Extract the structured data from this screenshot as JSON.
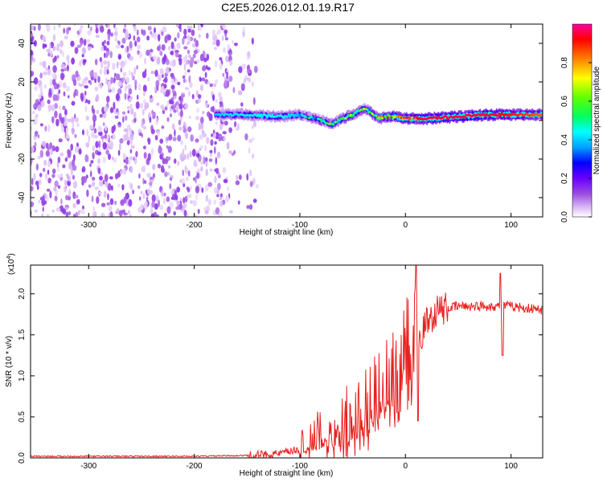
{
  "figure": {
    "title": "C2E5.2026.012.01.19.R17"
  },
  "chart_data": [
    {
      "type": "heatmap",
      "name": "spectrogram",
      "title": "C2E5.2026.012.01.19.R17",
      "xlabel": "Height of straight line (km)",
      "ylabel": "Frequency (Hz)",
      "xlim": [
        -355,
        130
      ],
      "ylim": [
        -50,
        50
      ],
      "xticks": [
        -300,
        -200,
        -100,
        0,
        100
      ],
      "xtick_labels": [
        "-300",
        "-200",
        "-100",
        "0",
        "100"
      ],
      "yticks": [
        -40,
        -20,
        0,
        20,
        40
      ],
      "ytick_labels": [
        "-40",
        "-20",
        "0",
        "20",
        "40"
      ],
      "colorbar": {
        "label": "Normalized spectral amplitude",
        "range": [
          0,
          1
        ],
        "ticks": [
          0.0,
          0.2,
          0.4,
          0.6,
          0.8
        ],
        "tick_labels": [
          "0.0",
          "0.2",
          "0.4",
          "0.6",
          "0.8"
        ],
        "colors": [
          "#ffffff",
          "#d9b8f5",
          "#9b4de0",
          "#6a00ff",
          "#0000ff",
          "#00a0ff",
          "#00ffff",
          "#00ff60",
          "#60ff00",
          "#ffff00",
          "#ff8000",
          "#ff0000",
          "#ff00a0"
        ]
      },
      "noise_region": {
        "x_from": -355,
        "x_to": -150,
        "amplitude_level": 0.1
      },
      "signal_trace": {
        "x": [
          -180,
          -150,
          -120,
          -100,
          -80,
          -70,
          -60,
          -50,
          -40,
          -35,
          -30,
          -25,
          -20,
          -10,
          0,
          20,
          50,
          80,
          100,
          130
        ],
        "frequency": [
          3,
          3,
          2,
          3,
          0,
          -2,
          1,
          3,
          6,
          5,
          3,
          1,
          2,
          2,
          1,
          1,
          2,
          3,
          3,
          3
        ],
        "amplitude": [
          0.45,
          0.5,
          0.5,
          0.45,
          0.5,
          0.55,
          0.6,
          0.6,
          0.55,
          0.6,
          0.6,
          0.7,
          0.75,
          0.8,
          0.9,
          0.95,
          0.95,
          0.95,
          0.9,
          0.85
        ]
      }
    },
    {
      "type": "line",
      "name": "snr",
      "xlabel": "Height of straight line (km)",
      "ylabel": "SNR (10 * v/v)",
      "scale_label": "(x10",
      "scale_exponent": "4",
      "xlim": [
        -355,
        130
      ],
      "ylim": [
        0,
        2.35
      ],
      "xticks": [
        -300,
        -200,
        -100,
        0,
        100
      ],
      "xtick_labels": [
        "-300",
        "-200",
        "-100",
        "0",
        "100"
      ],
      "yticks": [
        0.0,
        0.5,
        1.0,
        1.5,
        2.0
      ],
      "ytick_labels": [
        "0.0",
        "0.5",
        "1.0",
        "1.5",
        "2.0"
      ],
      "line_color": "#e8201e",
      "trend": {
        "x": [
          -355,
          -200,
          -150,
          -120,
          -100,
          -80,
          -60,
          -40,
          -30,
          -20,
          -10,
          0,
          10,
          20,
          30,
          50,
          70,
          85,
          100,
          130
        ],
        "y": [
          0.02,
          0.02,
          0.03,
          0.05,
          0.1,
          0.2,
          0.35,
          0.5,
          0.65,
          0.8,
          1.0,
          1.2,
          1.35,
          1.65,
          1.8,
          1.85,
          1.85,
          1.85,
          1.85,
          1.8
        ]
      },
      "spikes": [
        {
          "x": 10,
          "y": 2.35
        },
        {
          "x": 12,
          "y": 0.45
        },
        {
          "x": 90,
          "y": 2.25
        },
        {
          "x": 92,
          "y": 1.25
        }
      ]
    }
  ]
}
